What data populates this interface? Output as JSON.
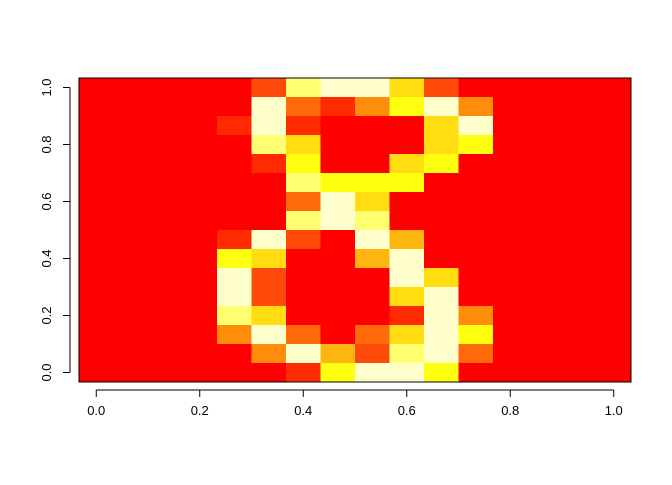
{
  "chart_data": {
    "type": "heatmap",
    "title": "",
    "xlabel": "",
    "ylabel": "",
    "xlim": [
      0,
      1
    ],
    "ylim": [
      0,
      1
    ],
    "x_ticks": [
      "0.0",
      "0.2",
      "0.4",
      "0.6",
      "0.8",
      "1.0"
    ],
    "y_ticks": [
      "0.0",
      "0.2",
      "0.4",
      "0.6",
      "0.8",
      "1.0"
    ],
    "palette": [
      "#FF0000",
      "#FF2A00",
      "#FF4A0A",
      "#FF6A0A",
      "#FF8C0A",
      "#FFB50F",
      "#FFDD10",
      "#FFFF10",
      "#FFFF70",
      "#FFFFCC"
    ],
    "matrix_rows_top_to_bottom": [
      [
        0,
        0,
        0,
        0,
        0,
        2,
        8,
        9,
        9,
        6,
        2,
        0,
        0,
        0,
        0,
        0
      ],
      [
        0,
        0,
        0,
        0,
        0,
        9,
        3,
        1,
        4,
        7,
        9,
        4,
        0,
        0,
        0,
        0
      ],
      [
        0,
        0,
        0,
        0,
        1,
        9,
        1,
        0,
        0,
        0,
        6,
        9,
        0,
        0,
        0,
        0
      ],
      [
        0,
        0,
        0,
        0,
        0,
        8,
        6,
        0,
        0,
        0,
        6,
        7,
        0,
        0,
        0,
        0
      ],
      [
        0,
        0,
        0,
        0,
        0,
        1,
        7,
        0,
        0,
        6,
        7,
        0,
        0,
        0,
        0,
        0
      ],
      [
        0,
        0,
        0,
        0,
        0,
        0,
        8,
        7,
        7,
        7,
        0,
        0,
        0,
        0,
        0,
        0
      ],
      [
        0,
        0,
        0,
        0,
        0,
        0,
        3,
        9,
        6,
        0,
        0,
        0,
        0,
        0,
        0,
        0
      ],
      [
        0,
        0,
        0,
        0,
        0,
        0,
        8,
        9,
        8,
        0,
        0,
        0,
        0,
        0,
        0,
        0
      ],
      [
        0,
        0,
        0,
        0,
        1,
        9,
        2,
        0,
        9,
        5,
        0,
        0,
        0,
        0,
        0,
        0
      ],
      [
        0,
        0,
        0,
        0,
        7,
        6,
        0,
        0,
        5,
        9,
        0,
        0,
        0,
        0,
        0,
        0
      ],
      [
        0,
        0,
        0,
        0,
        9,
        2,
        0,
        0,
        0,
        9,
        6,
        0,
        0,
        0,
        0,
        0
      ],
      [
        0,
        0,
        0,
        0,
        9,
        2,
        0,
        0,
        0,
        6,
        9,
        0,
        0,
        0,
        0,
        0
      ],
      [
        0,
        0,
        0,
        0,
        8,
        6,
        0,
        0,
        0,
        1,
        9,
        4,
        0,
        0,
        0,
        0
      ],
      [
        0,
        0,
        0,
        0,
        4,
        9,
        3,
        0,
        3,
        6,
        9,
        7,
        0,
        0,
        0,
        0
      ],
      [
        0,
        0,
        0,
        0,
        0,
        4,
        9,
        5,
        2,
        8,
        9,
        3,
        0,
        0,
        0,
        0
      ],
      [
        0,
        0,
        0,
        0,
        0,
        0,
        1,
        7,
        9,
        9,
        7,
        0,
        0,
        0,
        0,
        0
      ]
    ],
    "grid": false,
    "legend": "none"
  }
}
